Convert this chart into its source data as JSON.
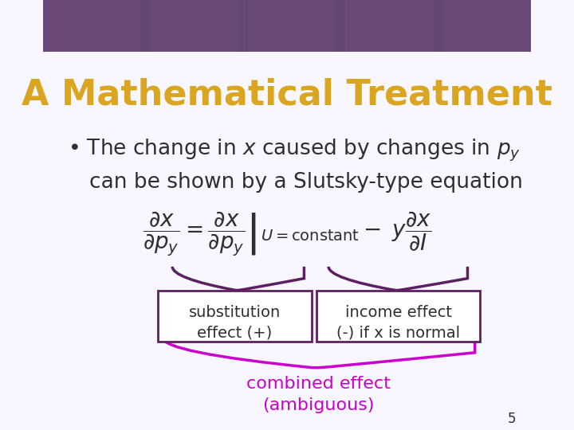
{
  "title": "A Mathematical Treatment",
  "title_color": "#DAA520",
  "title_fontsize": 32,
  "background_color": "#FFFFFF",
  "header_color": "#5C4068",
  "bullet_text_line1": "The change in $x$ caused by changes in $p_y$",
  "bullet_text_line2": "can be shown by a Slutsky-type equation",
  "bullet_fontsize": 19,
  "bullet_color": "#2F2F2F",
  "equation": "\\frac{\\partial x}{\\partial p_y} = \\left.\\frac{\\partial x}{\\partial p_y}\\right|_{U=\\mathrm{constant}} - y\\frac{\\partial x}{\\partial I}",
  "equation_color": "#2F2F2F",
  "equation_fontsize": 20,
  "subst_label_line1": "substitution",
  "subst_label_line2": "effect (+)",
  "income_label_line1": "income effect",
  "income_label_line2": "(-) if x is normal",
  "label_fontsize": 14,
  "label_color": "#2F2F2F",
  "brace_color_dark": "#5C2060",
  "brace_color_magenta": "#CC00CC",
  "combined_text_line1": "combined effect",
  "combined_text_line2": "(ambiguous)",
  "combined_color": "#CC00CC",
  "combined_fontsize": 16,
  "page_number": "5",
  "page_number_color": "#2F2F2F",
  "header_bar_color": "#6B4C7A",
  "slide_bg": "#F8F6FF"
}
